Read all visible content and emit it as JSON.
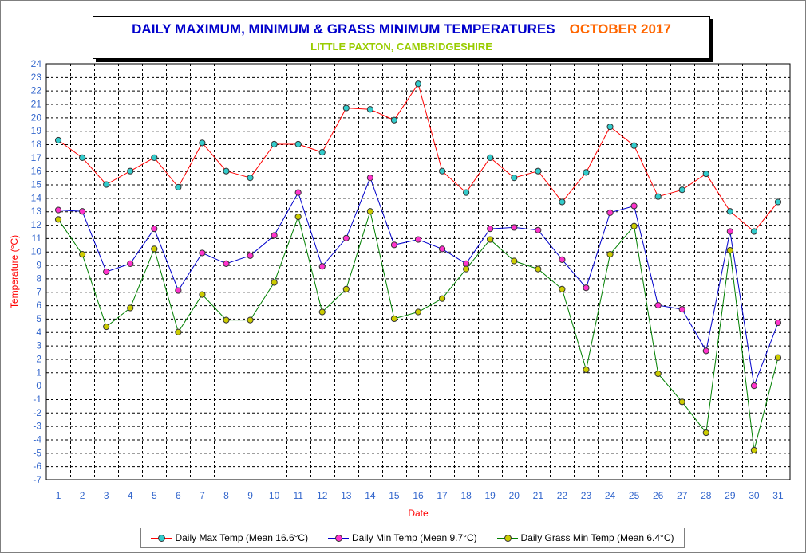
{
  "title": {
    "main": "DAILY MAXIMUM, MINIMUM & GRASS MINIMUM TEMPERATURES",
    "month": "OCTOBER 2017",
    "subtitle": "LITTLE PAXTON, CAMBRIDGESHIRE"
  },
  "colors": {
    "title": "#0000cc",
    "month": "#ff6600",
    "subtitle": "#99cc00",
    "axis_label": "#ff0000",
    "tick_label": "#3366cc"
  },
  "chart_data": {
    "type": "line",
    "xlabel": "Date",
    "ylabel": "Temperature (°C)",
    "ylim": [
      -7,
      24
    ],
    "grid": true,
    "legend_position": "bottom",
    "categories": [
      "1",
      "2",
      "3",
      "4",
      "5",
      "6",
      "7",
      "8",
      "9",
      "10",
      "11",
      "12",
      "13",
      "14",
      "15",
      "16",
      "17",
      "18",
      "19",
      "20",
      "21",
      "22",
      "23",
      "24",
      "25",
      "26",
      "27",
      "28",
      "29",
      "30",
      "31"
    ],
    "series": [
      {
        "name": "Daily Max Temp (Mean 16.6°C)",
        "line_color": "#ff0000",
        "marker_color": "#33cccc",
        "values": [
          18.3,
          17.0,
          15.0,
          16.0,
          17.0,
          14.8,
          18.1,
          16.0,
          15.5,
          18.0,
          18.0,
          17.4,
          20.7,
          20.6,
          19.8,
          22.5,
          16.0,
          14.4,
          17.0,
          15.5,
          16.0,
          13.7,
          15.9,
          19.3,
          17.9,
          14.1,
          14.6,
          15.8,
          13.0,
          11.5,
          13.7
        ]
      },
      {
        "name": "Daily Min Temp (Mean 9.7°C)",
        "line_color": "#0000cc",
        "marker_color": "#ff33cc",
        "values": [
          13.1,
          13.0,
          8.5,
          9.1,
          11.7,
          7.1,
          9.9,
          9.1,
          9.7,
          11.2,
          14.4,
          8.9,
          11.0,
          15.5,
          10.5,
          10.9,
          10.2,
          9.1,
          11.7,
          11.8,
          11.6,
          9.4,
          7.3,
          12.9,
          13.4,
          6.0,
          5.7,
          2.6,
          11.5,
          0.0,
          4.7
        ]
      },
      {
        "name": "Daily Grass Min Temp (Mean 6.4°C)",
        "line_color": "#008000",
        "marker_color": "#cccc00",
        "values": [
          12.4,
          9.8,
          4.4,
          5.8,
          10.2,
          4.0,
          6.8,
          4.9,
          4.9,
          7.7,
          12.6,
          5.5,
          7.2,
          13.0,
          5.0,
          5.5,
          6.5,
          8.7,
          10.9,
          9.3,
          8.7,
          7.2,
          1.2,
          9.8,
          11.9,
          0.9,
          -1.2,
          -3.5,
          10.1,
          -4.8,
          2.1
        ]
      }
    ]
  }
}
